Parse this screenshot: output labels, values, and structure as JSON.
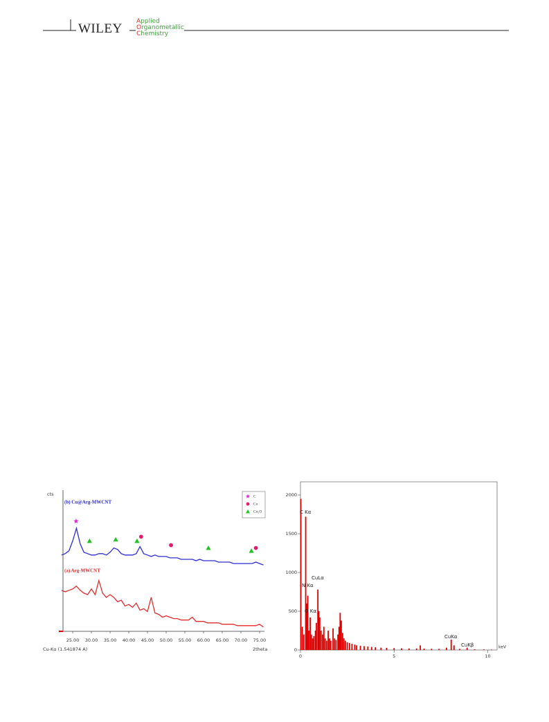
{
  "header": {
    "publisher": "WILEY",
    "journal": [
      "Applied",
      "Organometallic",
      "Chemistry"
    ]
  },
  "chart_data": [
    {
      "type": "line",
      "x": [
        22,
        23,
        24,
        25,
        26,
        27,
        28,
        29,
        30,
        31,
        32,
        33,
        34,
        35,
        36,
        37,
        38,
        39,
        40,
        41,
        42,
        43,
        44,
        45,
        46,
        47,
        48,
        49,
        50,
        51,
        52,
        53,
        54,
        55,
        56,
        57,
        58,
        59,
        60,
        61,
        62,
        63,
        64,
        65,
        66,
        67,
        68,
        69,
        70,
        71,
        72,
        73,
        74,
        75,
        76
      ],
      "series": [
        {
          "name": "(b) Cu@Arg-MWCNT",
          "color": "#2b2bdc",
          "values": [
            54,
            55,
            57,
            64,
            73,
            62,
            56,
            55,
            54,
            54,
            55,
            55,
            54,
            56,
            59,
            58,
            55,
            54,
            54,
            54,
            55,
            60,
            55,
            54,
            53,
            54,
            53,
            53,
            53,
            52,
            52,
            52,
            51,
            51,
            51,
            51,
            50,
            51,
            50,
            50,
            50,
            50,
            49,
            49,
            49,
            49,
            48,
            48,
            48,
            48,
            48,
            48,
            49,
            48,
            47
          ]
        },
        {
          "name": "(a) Arg-MWCNT",
          "color": "#e52a2a",
          "values": [
            29,
            28,
            29,
            30,
            32,
            29,
            27,
            26,
            30,
            26,
            36,
            27,
            24,
            26,
            24,
            21,
            22,
            18,
            19,
            17,
            20,
            15,
            16,
            14,
            24,
            13,
            12,
            10,
            11,
            10,
            9,
            9,
            8,
            8,
            8,
            10,
            7,
            7,
            7,
            6,
            6,
            6,
            6,
            5,
            5,
            5,
            5,
            4,
            4,
            4,
            4,
            4,
            4,
            5,
            3
          ]
        }
      ],
      "markers": [
        {
          "name": "C",
          "color": "#e81fe0",
          "shape": "star",
          "x": [
            25.9
          ],
          "values": [
            78
          ]
        },
        {
          "name": "Cu",
          "color": "#e8176e",
          "shape": "circle",
          "x": [
            43.3,
            51.3,
            74.0
          ],
          "values": [
            67,
            61,
            59
          ]
        },
        {
          "name": "Cu₂O",
          "color": "#22c422",
          "shape": "triangle",
          "x": [
            29.5,
            36.5,
            42.2,
            61.3,
            72.8
          ],
          "values": [
            64,
            65,
            64,
            59,
            57
          ]
        }
      ],
      "xlim": [
        22.4,
        76.3
      ],
      "ylim": [
        0,
        100
      ],
      "xticks": [
        {
          "value": 25,
          "label": "25.00"
        },
        {
          "value": 30,
          "label": "30.00"
        },
        {
          "value": 35,
          "label": "35.00"
        },
        {
          "value": 40,
          "label": "40.00"
        },
        {
          "value": 45,
          "label": "45.00"
        },
        {
          "value": 50,
          "label": "50.00"
        },
        {
          "value": 55,
          "label": "55.00"
        },
        {
          "value": 60,
          "label": "60.00"
        },
        {
          "value": 65,
          "label": "65.00"
        },
        {
          "value": 70,
          "label": "70.00"
        },
        {
          "value": 75,
          "label": "75.00"
        }
      ],
      "ylabel": "cts",
      "xlabel": "2theta",
      "annotations": [
        "Cu-Kα (1.541874 A)"
      ]
    },
    {
      "type": "spectrum",
      "color": "#e00000",
      "x": [
        0.02,
        0.1,
        0.18,
        0.28,
        0.34,
        0.39,
        0.45,
        0.52,
        0.58,
        0.65,
        0.72,
        0.8,
        0.85,
        0.93,
        0.98,
        1.03,
        1.1,
        1.18,
        1.25,
        1.32,
        1.4,
        1.48,
        1.55,
        1.62,
        1.74,
        1.82,
        1.9,
        2.0,
        2.06,
        2.12,
        2.18,
        2.25,
        2.32,
        2.4,
        2.5,
        2.62,
        2.75,
        2.9,
        3.0,
        3.2,
        3.4,
        3.6,
        3.8,
        4.0,
        4.3,
        4.6,
        5.0,
        5.4,
        5.8,
        6.2,
        6.4,
        6.6,
        7.0,
        7.4,
        7.8,
        8.05,
        8.2,
        8.5,
        8.9,
        9.3,
        9.8,
        10.2
      ],
      "values": [
        1950,
        300,
        200,
        1720,
        600,
        700,
        250,
        420,
        200,
        150,
        180,
        250,
        350,
        780,
        500,
        420,
        250,
        200,
        300,
        150,
        120,
        250,
        150,
        120,
        280,
        150,
        130,
        200,
        300,
        480,
        380,
        220,
        150,
        120,
        100,
        90,
        80,
        70,
        60,
        55,
        50,
        45,
        40,
        35,
        30,
        28,
        25,
        22,
        20,
        20,
        60,
        18,
        16,
        15,
        30,
        135,
        60,
        15,
        30,
        10,
        8,
        6
      ],
      "xlim": [
        0,
        10.5
      ],
      "ylim": [
        0,
        2170
      ],
      "xticks": [
        0,
        5,
        10
      ],
      "yticks": [
        0,
        500,
        1000,
        1500,
        2000
      ],
      "xlabel": "keV",
      "annotations": [
        "C Kα",
        "N Kα",
        "O Kα",
        "CuLα",
        "CuKα",
        "CuKβ"
      ]
    }
  ]
}
